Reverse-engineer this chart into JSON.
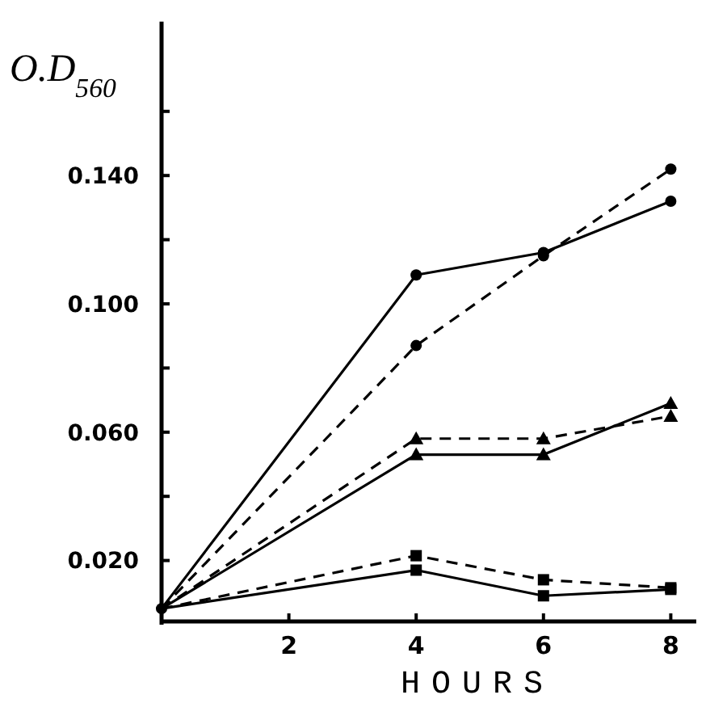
{
  "chart_data": {
    "type": "line",
    "ylabel": "O.D$_{560}$",
    "xlabel": "HOURS",
    "x": [
      0,
      4,
      6,
      8
    ],
    "xlim": [
      0,
      8.4
    ],
    "xticks": [
      2,
      4,
      6,
      8
    ],
    "ylim": [
      0,
      0.188
    ],
    "yticks": [
      {
        "value": 0.02,
        "label": "0.020"
      },
      {
        "value": 0.04,
        "label": null
      },
      {
        "value": 0.06,
        "label": "0.060"
      },
      {
        "value": 0.08,
        "label": null
      },
      {
        "value": 0.1,
        "label": "0.100"
      },
      {
        "value": 0.12,
        "label": null
      },
      {
        "value": 0.14,
        "label": "0.140"
      },
      {
        "value": 0.16,
        "label": null
      }
    ],
    "grid": false,
    "series": [
      {
        "color": "#000000",
        "marker": "circle",
        "line_style": "solid",
        "values": [
          0.005,
          0.109,
          0.116,
          0.132
        ]
      },
      {
        "color": "#000000",
        "marker": "circle",
        "line_style": "dashed",
        "values": [
          0.005,
          0.087,
          0.115,
          0.142
        ]
      },
      {
        "color": "#000000",
        "marker": "triangle",
        "line_style": "dashed",
        "values": [
          0.005,
          0.058,
          0.058,
          0.065
        ]
      },
      {
        "color": "#000000",
        "marker": "triangle",
        "line_style": "solid",
        "values": [
          0.005,
          0.053,
          0.053,
          0.069
        ]
      },
      {
        "color": "#000000",
        "marker": "square",
        "line_style": "dashed",
        "values": [
          0.005,
          0.0215,
          0.014,
          0.0115
        ]
      },
      {
        "color": "#000000",
        "marker": "square",
        "line_style": "solid",
        "values": [
          0.005,
          0.017,
          0.009,
          0.011
        ]
      }
    ]
  }
}
